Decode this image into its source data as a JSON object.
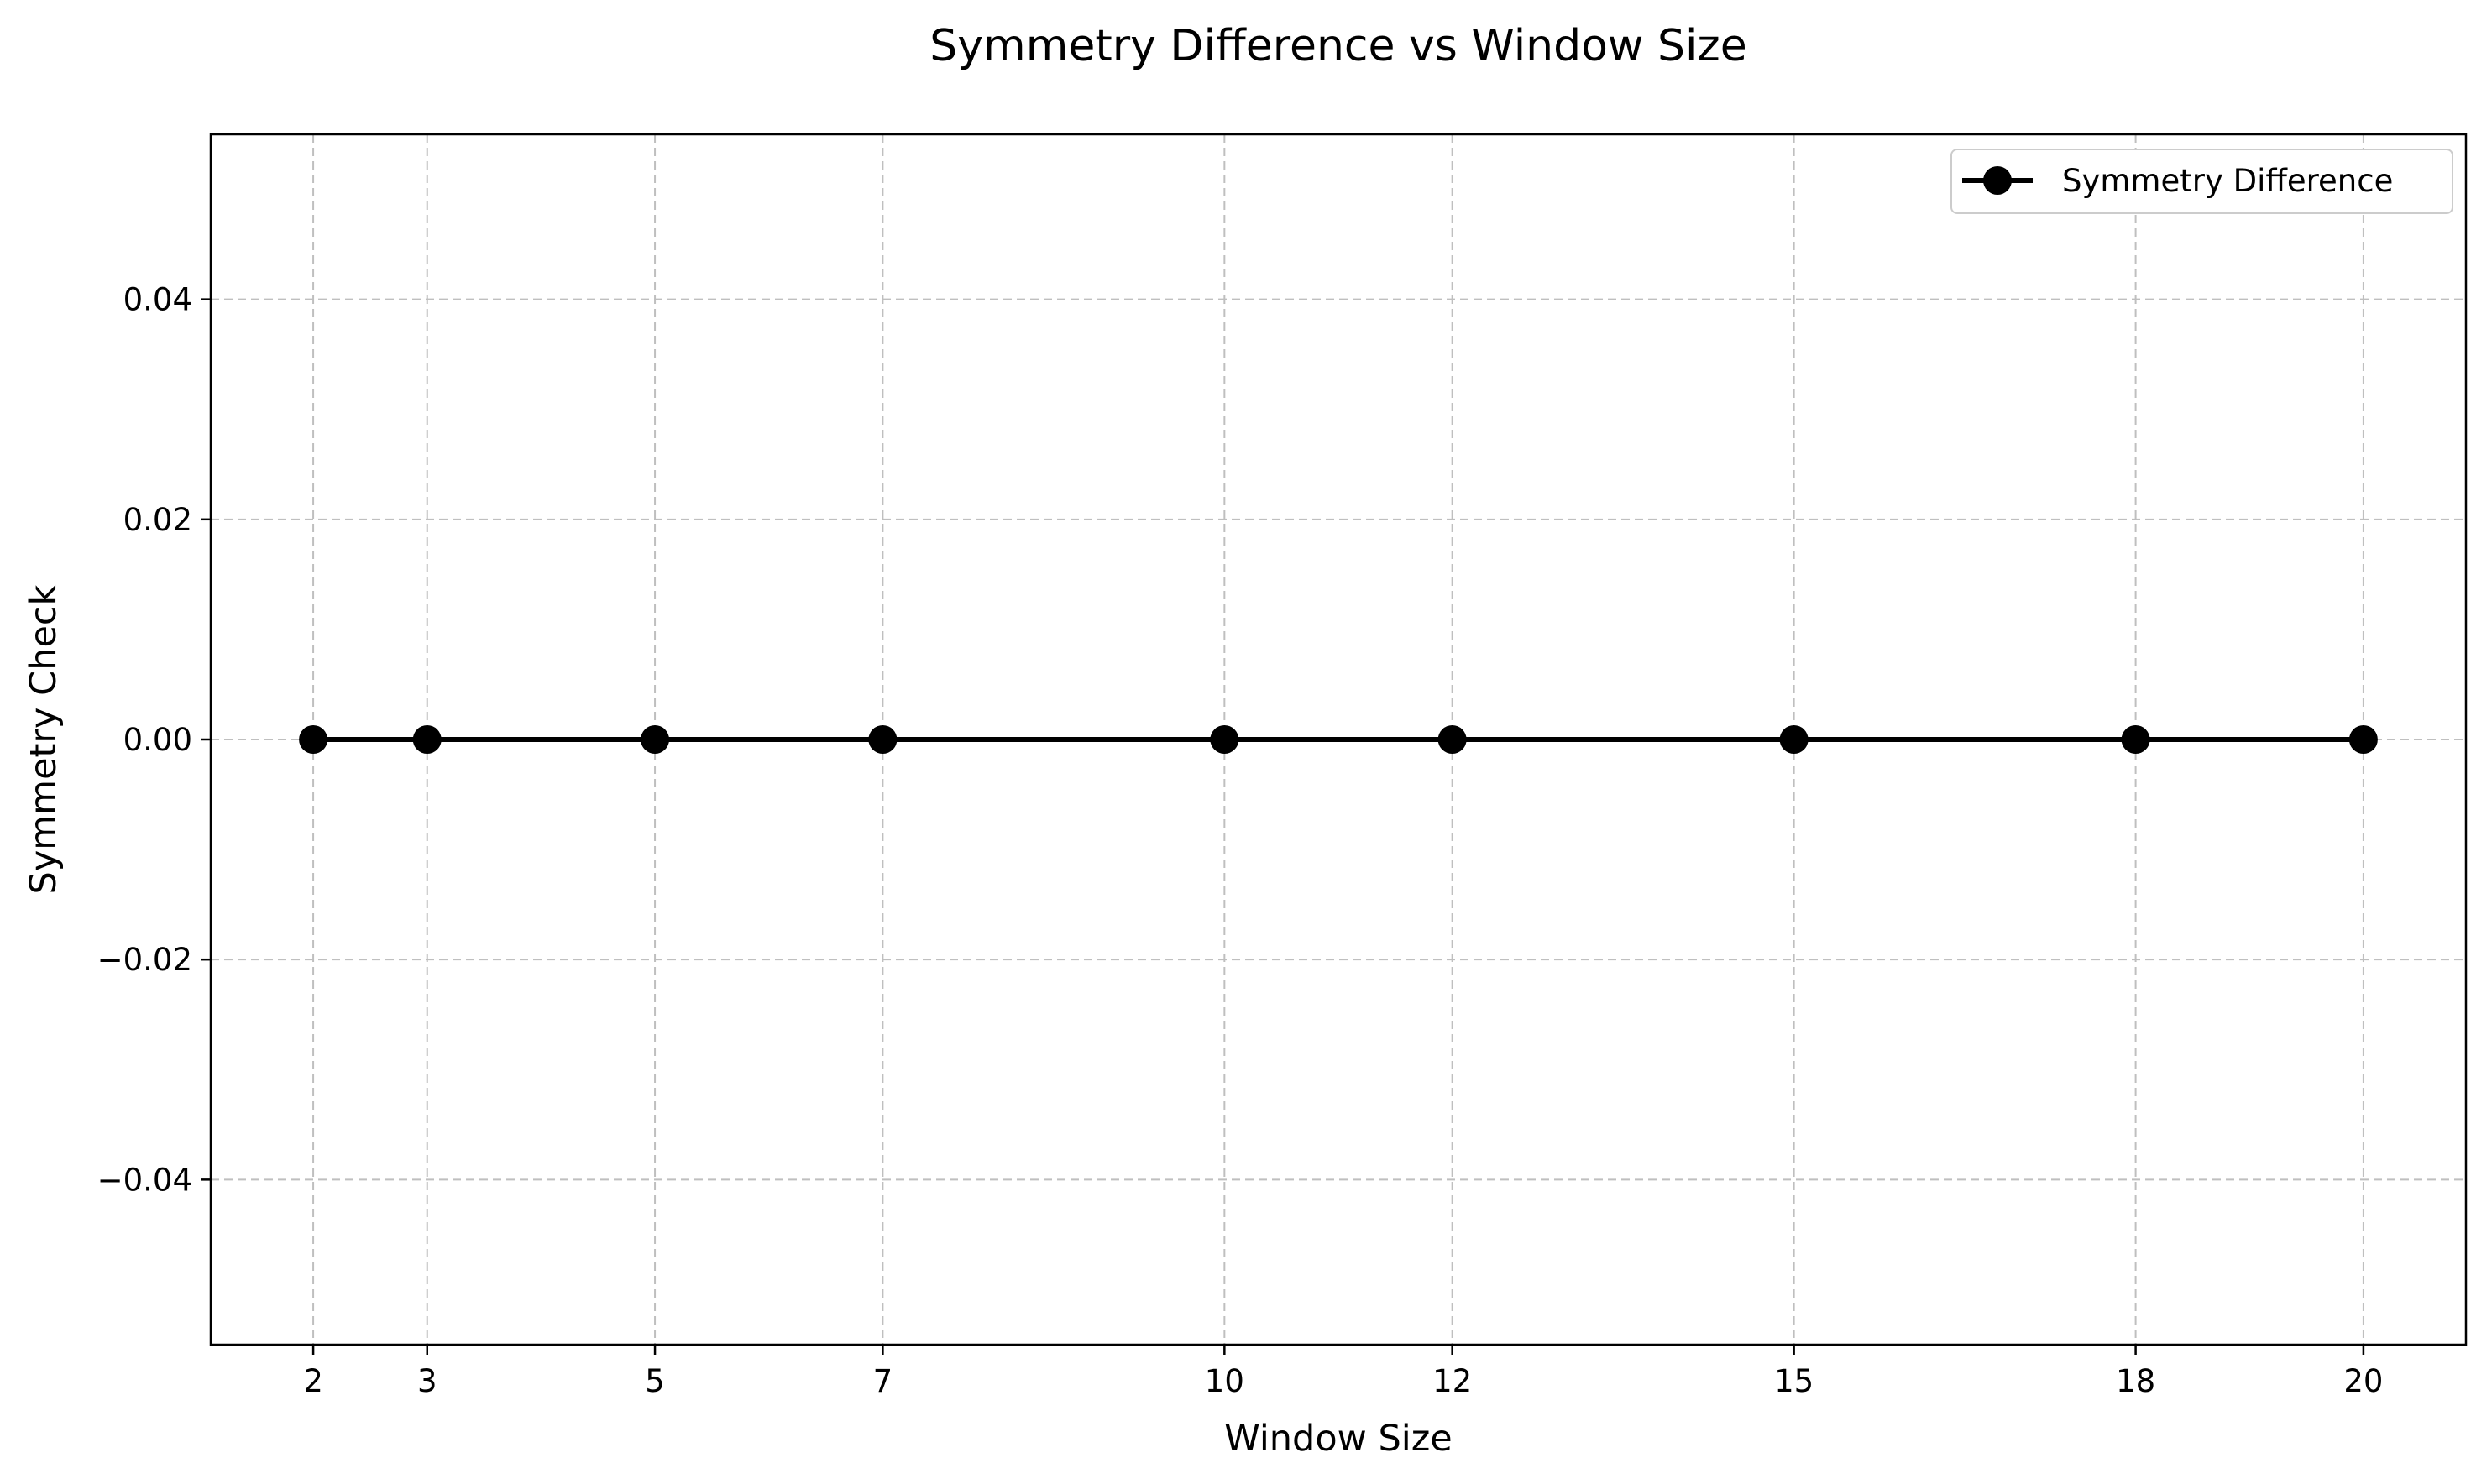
{
  "chart_data": {
    "type": "line",
    "title": "Symmetry Difference vs Window Size",
    "xlabel": "Window Size",
    "ylabel": "Symmetry Check",
    "x": [
      2,
      3,
      5,
      7,
      10,
      12,
      15,
      18,
      20
    ],
    "series": [
      {
        "name": "Symmetry Difference",
        "values": [
          0,
          0,
          0,
          0,
          0,
          0,
          0,
          0,
          0
        ],
        "color": "#000000",
        "marker": "circle"
      }
    ],
    "xlim": [
      1.1,
      20.9
    ],
    "ylim": [
      -0.055,
      0.055
    ],
    "x_ticks": [
      2,
      3,
      5,
      7,
      10,
      12,
      15,
      18,
      20
    ],
    "x_tick_labels": [
      "2",
      "3",
      "5",
      "7",
      "10",
      "12",
      "15",
      "18",
      "20"
    ],
    "y_ticks": [
      -0.04,
      -0.02,
      0.0,
      0.02,
      0.04
    ],
    "y_tick_labels": [
      "−0.04",
      "−0.02",
      "0.00",
      "0.02",
      "0.04"
    ],
    "grid": true,
    "grid_color": "#bfbfbf",
    "legend_position": "upper right"
  }
}
